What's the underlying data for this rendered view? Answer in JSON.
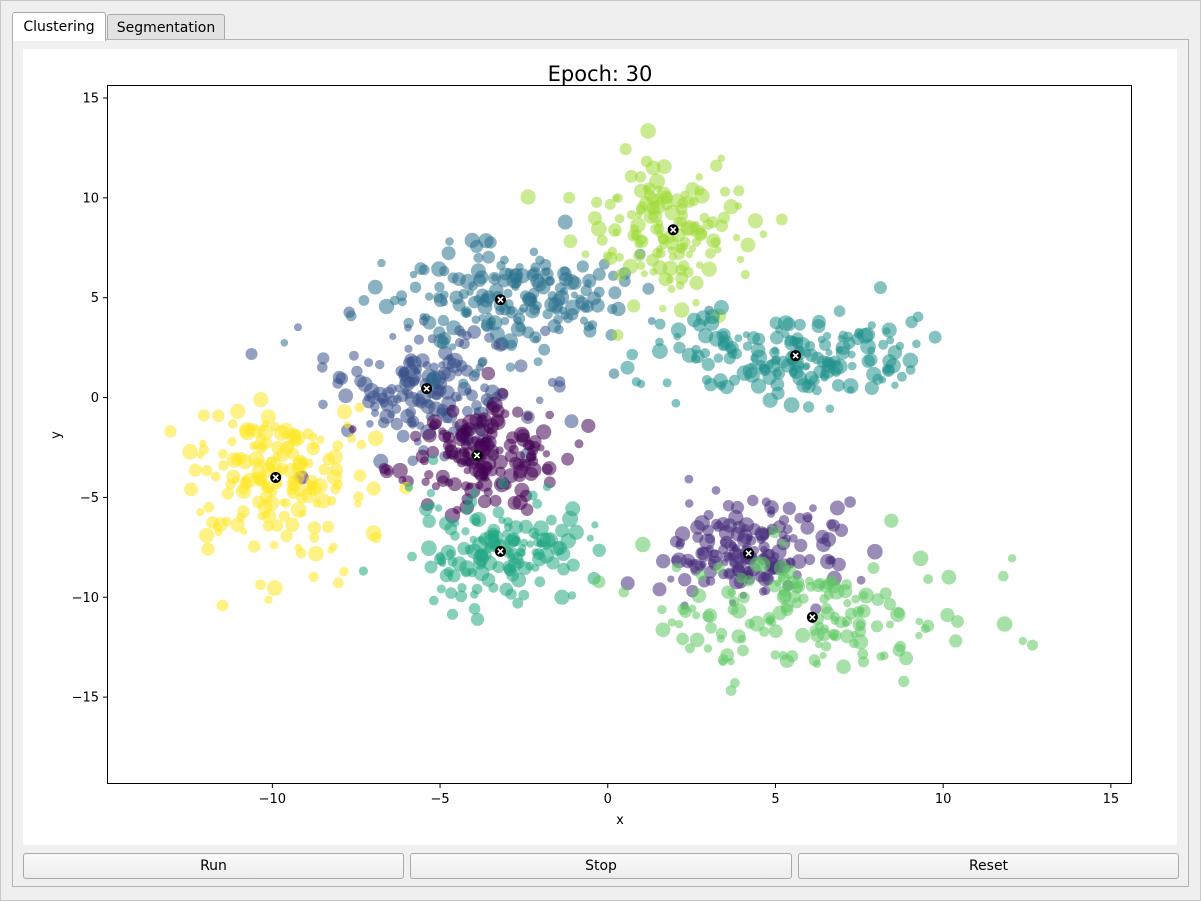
{
  "tabs": [
    {
      "label": "Clustering",
      "active": true
    },
    {
      "label": "Segmentation",
      "active": false
    }
  ],
  "buttons": {
    "run_label": "Run",
    "stop_label": "Stop",
    "reset_label": "Reset"
  },
  "chart_data": {
    "type": "scatter",
    "title": "Epoch: 30",
    "xlabel": "x",
    "ylabel": "y",
    "xlim": [
      -14.9,
      15.6
    ],
    "ylim": [
      -19.3,
      15.6
    ],
    "xticks": [
      -10,
      -5,
      0,
      5,
      10,
      15
    ],
    "xtick_labels": [
      "−10",
      "−5",
      "0",
      "5",
      "10",
      "15"
    ],
    "yticks": [
      15,
      10,
      5,
      0,
      -5,
      -10,
      -15
    ],
    "ytick_labels": [
      "15",
      "10",
      "5",
      "0",
      "−5",
      "−10",
      "−15"
    ],
    "grid": false,
    "legend": "none",
    "point_opacity": 0.55,
    "centroid_marker": "X",
    "centroid_color": "#000000",
    "clusters": [
      {
        "centroid": [
          -5.4,
          0.45
        ],
        "spread": [
          1.5,
          1.5
        ],
        "n": 170,
        "color": "#3b528b"
      },
      {
        "centroid": [
          -3.2,
          4.9
        ],
        "spread": [
          1.9,
          1.4
        ],
        "n": 190,
        "color": "#2c728e"
      },
      {
        "centroid": [
          -3.9,
          -2.9
        ],
        "spread": [
          1.3,
          1.3
        ],
        "n": 160,
        "color": "#440154"
      },
      {
        "centroid": [
          -9.9,
          -4.0
        ],
        "spread": [
          1.4,
          1.9
        ],
        "n": 180,
        "color": "#fde725"
      },
      {
        "centroid": [
          -3.2,
          -7.7
        ],
        "spread": [
          1.3,
          1.3
        ],
        "n": 150,
        "color": "#22a884"
      },
      {
        "centroid": [
          1.95,
          8.4
        ],
        "spread": [
          1.3,
          1.8
        ],
        "n": 150,
        "color": "#a0da39"
      },
      {
        "centroid": [
          5.6,
          2.1
        ],
        "spread": [
          1.9,
          1.0
        ],
        "n": 180,
        "color": "#21918c"
      },
      {
        "centroid": [
          4.2,
          -7.8
        ],
        "spread": [
          1.2,
          1.3
        ],
        "n": 170,
        "color": "#472d7b"
      },
      {
        "centroid": [
          6.1,
          -11.0
        ],
        "spread": [
          2.4,
          1.7
        ],
        "n": 160,
        "color": "#5ec962"
      }
    ]
  }
}
